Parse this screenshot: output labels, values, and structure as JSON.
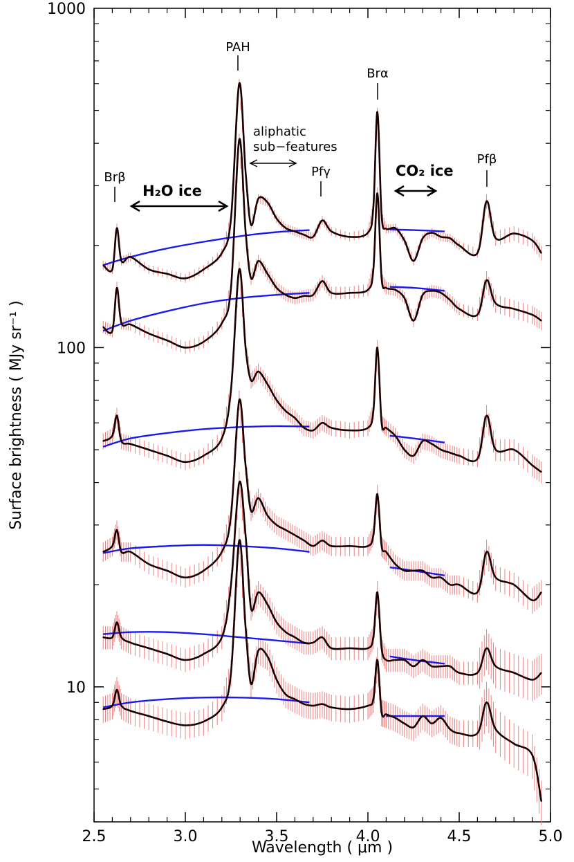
{
  "chart_data": {
    "type": "line",
    "title": "",
    "xlabel": "Wavelength ( μm )",
    "ylabel": "Surface brightness ( MJy sr⁻¹ )",
    "xlim": [
      2.5,
      5.0
    ],
    "ylim": [
      4,
      1000
    ],
    "y_scale": "log",
    "x_ticks": [
      "2.5",
      "3.0",
      "3.5",
      "4.0",
      "4.5",
      "5.0"
    ],
    "y_ticks": [
      "10",
      "100",
      "1000"
    ],
    "grid": false,
    "legend": "none",
    "colors": {
      "spectrum": "#1a0000",
      "error_bars": "#f08080",
      "continuum": "#1a1aee"
    },
    "annotations": {
      "pah": "PAH",
      "bra": "Brα",
      "brb": "Brβ",
      "pfg": "Pfγ",
      "pfb": "Pfβ",
      "aliphatic_line1": "aliphatic",
      "aliphatic_line2": "sub−features",
      "h2o_ice": "H₂O ice",
      "co2_ice": "CO₂ ice"
    },
    "series": [
      {
        "x": [
          2.55,
          2.6,
          2.625,
          2.65,
          2.7,
          2.8,
          2.9,
          3.0,
          3.1,
          3.2,
          3.25,
          3.295,
          3.33,
          3.36,
          3.4,
          3.45,
          3.5,
          3.55,
          3.6,
          3.65,
          3.7,
          3.75,
          3.8,
          3.9,
          4.0,
          4.03,
          4.052,
          4.075,
          4.1,
          4.15,
          4.2,
          4.25,
          4.3,
          4.35,
          4.4,
          4.45,
          4.5,
          4.6,
          4.65,
          4.7,
          4.8,
          4.9,
          4.95
        ],
        "y": [
          175,
          170,
          225,
          180,
          185,
          170,
          165,
          160,
          170,
          190,
          240,
          600,
          330,
          230,
          275,
          268,
          240,
          225,
          220,
          215,
          212,
          237,
          220,
          212,
          218,
          260,
          495,
          245,
          224,
          225,
          207,
          180,
          210,
          218,
          212,
          210,
          200,
          190,
          270,
          210,
          217,
          207,
          190
        ]
      },
      {
        "x": [
          2.55,
          2.6,
          2.625,
          2.65,
          2.7,
          2.8,
          2.9,
          3.0,
          3.1,
          3.2,
          3.25,
          3.295,
          3.33,
          3.36,
          3.4,
          3.45,
          3.5,
          3.55,
          3.6,
          3.65,
          3.7,
          3.75,
          3.8,
          3.9,
          4.0,
          4.03,
          4.052,
          4.075,
          4.1,
          4.15,
          4.2,
          4.25,
          4.3,
          4.35,
          4.4,
          4.45,
          4.5,
          4.6,
          4.65,
          4.7,
          4.8,
          4.9,
          4.95
        ],
        "y": [
          115,
          112,
          150,
          118,
          117,
          110,
          105,
          100,
          104,
          118,
          150,
          410,
          220,
          160,
          180,
          165,
          150,
          143,
          140,
          142,
          143,
          157,
          145,
          145,
          148,
          170,
          285,
          160,
          150,
          148,
          140,
          120,
          143,
          147,
          145,
          138,
          130,
          125,
          158,
          135,
          130,
          125,
          120
        ]
      },
      {
        "x": [
          2.55,
          2.6,
          2.625,
          2.65,
          2.7,
          2.8,
          2.9,
          3.0,
          3.1,
          3.2,
          3.25,
          3.295,
          3.33,
          3.36,
          3.4,
          3.45,
          3.5,
          3.55,
          3.6,
          3.65,
          3.7,
          3.75,
          3.8,
          3.9,
          4.0,
          4.03,
          4.052,
          4.075,
          4.1,
          4.15,
          4.2,
          4.25,
          4.3,
          4.35,
          4.4,
          4.45,
          4.5,
          4.6,
          4.65,
          4.7,
          4.8,
          4.9,
          4.95
        ],
        "y": [
          53,
          55,
          63,
          53,
          52,
          50,
          48,
          46,
          48,
          54,
          75,
          170,
          100,
          80,
          85,
          78,
          70,
          65,
          62,
          58,
          57,
          60,
          58,
          57,
          58,
          65,
          100,
          60,
          58,
          55,
          50,
          48,
          53,
          52,
          50,
          49,
          48,
          47,
          63,
          50,
          50,
          45,
          43
        ]
      },
      {
        "x": [
          2.55,
          2.6,
          2.625,
          2.65,
          2.7,
          2.8,
          2.9,
          3.0,
          3.1,
          3.2,
          3.25,
          3.295,
          3.33,
          3.36,
          3.4,
          3.45,
          3.5,
          3.55,
          3.6,
          3.65,
          3.7,
          3.75,
          3.8,
          3.9,
          4.0,
          4.03,
          4.052,
          4.075,
          4.1,
          4.15,
          4.2,
          4.25,
          4.3,
          4.35,
          4.4,
          4.45,
          4.5,
          4.6,
          4.65,
          4.7,
          4.8,
          4.9,
          4.95
        ],
        "y": [
          25,
          26,
          29,
          25,
          25,
          23,
          22,
          21,
          22,
          25,
          32,
          70,
          45,
          33,
          36,
          32,
          30,
          29,
          28,
          27,
          26,
          27,
          26,
          26,
          26,
          28,
          37,
          26,
          25,
          23,
          22,
          22,
          22,
          21,
          21,
          20,
          20,
          19,
          25,
          21,
          20,
          18,
          19
        ]
      },
      {
        "x": [
          2.55,
          2.6,
          2.625,
          2.65,
          2.7,
          2.8,
          2.9,
          3.0,
          3.1,
          3.2,
          3.25,
          3.295,
          3.33,
          3.36,
          3.4,
          3.45,
          3.5,
          3.55,
          3.6,
          3.65,
          3.7,
          3.75,
          3.8,
          3.9,
          4.0,
          4.03,
          4.052,
          4.075,
          4.1,
          4.15,
          4.2,
          4.25,
          4.3,
          4.35,
          4.4,
          4.45,
          4.5,
          4.6,
          4.65,
          4.7,
          4.8,
          4.9,
          4.95
        ],
        "y": [
          14,
          14,
          15.5,
          14,
          13.5,
          13,
          12.5,
          12,
          12.5,
          14,
          20,
          40,
          28,
          17,
          19,
          17.5,
          15.5,
          14.5,
          14,
          13.5,
          13.5,
          14,
          13,
          13,
          13,
          14,
          19,
          13,
          12,
          12,
          12,
          11.5,
          12,
          11.5,
          11.5,
          11.5,
          11,
          11,
          13,
          11.5,
          11,
          10.5,
          11
        ]
      },
      {
        "x": [
          2.55,
          2.6,
          2.625,
          2.65,
          2.7,
          2.8,
          2.9,
          3.0,
          3.1,
          3.2,
          3.25,
          3.295,
          3.33,
          3.36,
          3.4,
          3.45,
          3.5,
          3.55,
          3.6,
          3.65,
          3.7,
          3.75,
          3.8,
          3.9,
          4.0,
          4.03,
          4.052,
          4.075,
          4.1,
          4.15,
          4.2,
          4.25,
          4.3,
          4.35,
          4.4,
          4.45,
          4.5,
          4.6,
          4.65,
          4.7,
          4.8,
          4.9,
          4.95
        ],
        "y": [
          8.6,
          8.8,
          9.8,
          8.8,
          8.5,
          8.2,
          7.9,
          7.7,
          7.9,
          8.7,
          11,
          27,
          15,
          10.2,
          12.8,
          12.3,
          10.5,
          9.5,
          9.2,
          8.9,
          8.8,
          8.9,
          8.7,
          8.6,
          8.8,
          9.2,
          12,
          8.4,
          8.3,
          8.1,
          7.8,
          7.6,
          8.2,
          7.8,
          8.1,
          7.5,
          7.3,
          7.3,
          9.0,
          7.5,
          6.8,
          6.3,
          4.6
        ]
      }
    ],
    "continua": [
      {
        "segments": [
          {
            "x": [
              2.55,
              2.7,
              2.9,
              3.1,
              3.3,
              3.5,
              3.68
            ],
            "y": [
              175,
              185,
              196,
              205,
              213,
              219,
              222
            ]
          },
          {
            "x": [
              4.12,
              4.25,
              4.42
            ],
            "y": [
              223,
              222,
              220
            ]
          }
        ]
      },
      {
        "segments": [
          {
            "x": [
              2.55,
              2.7,
              2.9,
              3.1,
              3.3,
              3.5,
              3.68
            ],
            "y": [
              112,
              120,
              128,
              135,
              140,
              143,
              145
            ]
          },
          {
            "x": [
              4.12,
              4.25,
              4.42
            ],
            "y": [
              151,
              150,
              147
            ]
          }
        ]
      },
      {
        "segments": [
          {
            "x": [
              2.55,
              2.7,
              2.9,
              3.1,
              3.3,
              3.5,
              3.68
            ],
            "y": [
              51,
              54,
              56,
              57.5,
              58.3,
              58.7,
              58.5
            ]
          },
          {
            "x": [
              4.12,
              4.25,
              4.42
            ],
            "y": [
              55,
              54,
              52.5
            ]
          }
        ]
      },
      {
        "segments": [
          {
            "x": [
              2.55,
              2.7,
              2.9,
              3.1,
              3.3,
              3.5,
              3.68
            ],
            "y": [
              24.8,
              25.6,
              26,
              26.2,
              26,
              25.6,
              25
            ]
          },
          {
            "x": [
              4.12,
              4.25,
              4.42
            ],
            "y": [
              22.5,
              22,
              21.3
            ]
          }
        ]
      },
      {
        "segments": [
          {
            "x": [
              2.55,
              2.7,
              2.9,
              3.1,
              3.3,
              3.5,
              3.68
            ],
            "y": [
              14.3,
              14.5,
              14.5,
              14.3,
              14,
              13.7,
              13.4
            ]
          },
          {
            "x": [
              4.12,
              4.25,
              4.42
            ],
            "y": [
              12.3,
              12,
              11.7
            ]
          }
        ]
      },
      {
        "segments": [
          {
            "x": [
              2.55,
              2.7,
              2.9,
              3.1,
              3.3,
              3.5,
              3.68
            ],
            "y": [
              8.7,
              9.0,
              9.2,
              9.3,
              9.3,
              9.2,
              9.0
            ]
          },
          {
            "x": [
              4.1,
              4.25,
              4.42
            ],
            "y": [
              8.2,
              8.2,
              8.2
            ]
          }
        ]
      }
    ]
  }
}
